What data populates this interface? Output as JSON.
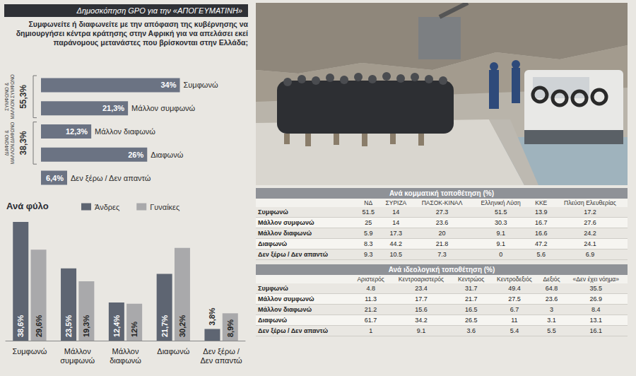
{
  "header": {
    "source": "Δημοσκόπηση GPO για την «ΑΠΟΓΕΥΜΑΤΙΝΗ»",
    "question": "Συμφωνείτε ή διαφωνείτε με την απόφαση της κυβέρνησης να δημιουργήσει κέντρα κράτησης στην Αφρική για να απελάσει εκεί παράνομους μετανάστες που βρίσκονται στην Ελλάδα;"
  },
  "chart_data": [
    {
      "type": "bar",
      "orientation": "horizontal",
      "categories": [
        "Συμφωνώ",
        "Μάλλον συμφωνώ",
        "Μάλλον διαφωνώ",
        "Διαφωνώ",
        "Δεν ξέρω / Δεν απαντώ"
      ],
      "values": [
        34,
        21.3,
        12.3,
        26,
        6.4
      ],
      "value_labels": [
        "34%",
        "21,3%",
        "12,3%",
        "26%",
        "6,4%"
      ],
      "color": "#6b7383",
      "xlim": [
        0,
        50
      ],
      "data_labels": true,
      "tick_labels": false,
      "grid": false,
      "annotations": [
        {
          "text": "ΣΥΜΦΩΝΟ & ΜΑΛΛΟΝ ΣΥΜΦΩΝΟ",
          "value": 55.3,
          "label": "55,3%",
          "categories": [
            "Συμφωνώ",
            "Μάλλον συμφωνώ"
          ]
        },
        {
          "text": "ΔΙΑΦΩΝΟ & ΜΑΛΛΟΝ ΔΙΑΦΩΝΟ",
          "value": 38.3,
          "label": "38,3%",
          "categories": [
            "Μάλλον διαφωνώ",
            "Διαφωνώ"
          ]
        }
      ]
    },
    {
      "type": "bar",
      "title": "Ανά φύλο",
      "categories": [
        "Συμφωνώ",
        "Μάλλον συμφωνώ",
        "Μάλλον διαφωνώ",
        "Διαφωνώ",
        "Δεν ξέρω / Δεν απαντώ"
      ],
      "series": [
        {
          "name": "Άνδρες",
          "color": "#5e6572",
          "values": [
            38.6,
            23.5,
            12.4,
            21.7,
            3.8
          ],
          "value_labels": [
            "38,6%",
            "23,5%",
            "12,4%",
            "21,7%",
            "3,8%"
          ]
        },
        {
          "name": "Γυναίκες",
          "color": "#a9a9ab",
          "values": [
            29.6,
            19.3,
            12,
            30.2,
            8.9
          ],
          "value_labels": [
            "29,6%",
            "19,3%",
            "12%",
            "30,2%",
            "8,9%"
          ]
        }
      ],
      "ylim": [
        0,
        40
      ],
      "data_labels": true,
      "tick_labels": "x",
      "grid": false,
      "legend": "top"
    }
  ],
  "tables": [
    {
      "title": "Ανά κομματική τοποθέτηση (%)",
      "columns": [
        "ΝΔ",
        "ΣΥΡΙΖΑ",
        "ΠΑΣΟΚ-ΚΙΝΑΛ",
        "Ελληνική Λύση",
        "ΚΚΕ",
        "Πλεύση Ελευθερίας"
      ],
      "rows": [
        {
          "label": "Συμφωνώ",
          "values": [
            51.5,
            14,
            27.3,
            51.5,
            13.9,
            17.2
          ]
        },
        {
          "label": "Μάλλον συμφωνώ",
          "values": [
            25,
            14,
            23.6,
            30.3,
            16.7,
            27.6
          ]
        },
        {
          "label": "Μάλλον διαφωνώ",
          "values": [
            5.9,
            17.3,
            20,
            9.1,
            16.6,
            24.2
          ]
        },
        {
          "label": "Διαφωνώ",
          "values": [
            8.3,
            44.2,
            21.8,
            9.1,
            47.2,
            24.1
          ]
        },
        {
          "label": "Δεν ξέρω / Δεν απαντώ",
          "values": [
            9.3,
            10.5,
            7.3,
            0,
            5.6,
            6.9
          ]
        }
      ]
    },
    {
      "title": "Ανά ιδεολογική τοποθέτηση (%)",
      "columns": [
        "Αριστερός",
        "Κεντροαριστερός",
        "Κεντρώος",
        "Κεντροδεξιός",
        "Δεξιός",
        "«Δεν έχει νόημα»"
      ],
      "rows": [
        {
          "label": "Συμφωνώ",
          "values": [
            4.8,
            23.4,
            31.7,
            49.4,
            64.8,
            35.5
          ]
        },
        {
          "label": "Μάλλον συμφωνώ",
          "values": [
            11.3,
            17.7,
            21.7,
            27.5,
            23.6,
            26.9
          ]
        },
        {
          "label": "Μάλλον διαφωνώ",
          "values": [
            21.2,
            15.6,
            16.5,
            6.7,
            3,
            8.4
          ]
        },
        {
          "label": "Διαφωνώ",
          "values": [
            61.7,
            34.2,
            26.5,
            11,
            3.1,
            13.1
          ]
        },
        {
          "label": "Δεν ξέρω / Δεν απαντώ",
          "values": [
            1,
            9.1,
            3.6,
            5.4,
            5.5,
            16.1
          ]
        }
      ]
    }
  ]
}
